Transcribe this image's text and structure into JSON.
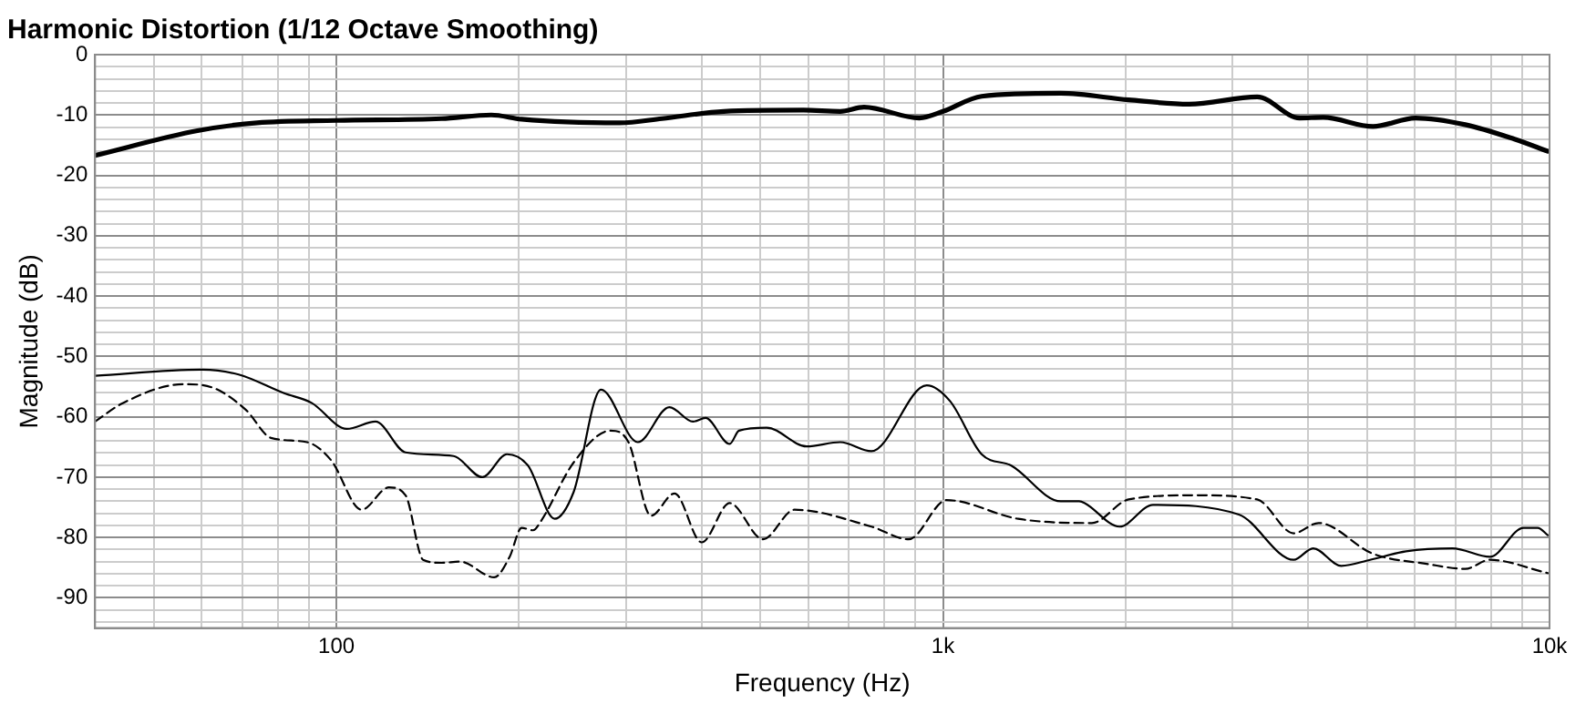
{
  "chart_data": {
    "type": "line",
    "title": "Harmonic Distortion (1/12 Octave Smoothing)",
    "xlabel": "Frequency (Hz)",
    "ylabel": "Magnitude (dB)",
    "log": "x",
    "grid": true,
    "legend": false,
    "marker": "none",
    "xlim": [
      40,
      10000
    ],
    "ylim": [
      -95,
      0
    ],
    "xticks": [
      {
        "value": 50,
        "label": null
      },
      {
        "value": 60,
        "label": null
      },
      {
        "value": 70,
        "label": null
      },
      {
        "value": 80,
        "label": null
      },
      {
        "value": 90,
        "label": null
      },
      100,
      {
        "value": 200,
        "label": null
      },
      {
        "value": 300,
        "label": null
      },
      {
        "value": 400,
        "label": null
      },
      {
        "value": 500,
        "label": null
      },
      {
        "value": 600,
        "label": null
      },
      {
        "value": 700,
        "label": null
      },
      {
        "value": 800,
        "label": null
      },
      {
        "value": 900,
        "label": null
      },
      {
        "value": 1000,
        "label": "1k"
      },
      {
        "value": 2000,
        "label": null
      },
      {
        "value": 3000,
        "label": null
      },
      {
        "value": 4000,
        "label": null
      },
      {
        "value": 5000,
        "label": null
      },
      {
        "value": 6000,
        "label": null
      },
      {
        "value": 7000,
        "label": null
      },
      {
        "value": 8000,
        "label": null
      },
      {
        "value": 9000,
        "label": null
      },
      {
        "value": 10000,
        "label": "10k"
      }
    ],
    "yticks": [
      0,
      {
        "value": -2,
        "label": null
      },
      {
        "value": -4,
        "label": null
      },
      {
        "value": -6,
        "label": null
      },
      {
        "value": -8,
        "label": null
      },
      -10,
      {
        "value": -12,
        "label": null
      },
      {
        "value": -14,
        "label": null
      },
      {
        "value": -16,
        "label": null
      },
      {
        "value": -18,
        "label": null
      },
      -20,
      {
        "value": -22,
        "label": null
      },
      {
        "value": -24,
        "label": null
      },
      {
        "value": -26,
        "label": null
      },
      {
        "value": -28,
        "label": null
      },
      -30,
      {
        "value": -32,
        "label": null
      },
      {
        "value": -34,
        "label": null
      },
      {
        "value": -36,
        "label": null
      },
      {
        "value": -38,
        "label": null
      },
      -40,
      {
        "value": -42,
        "label": null
      },
      {
        "value": -44,
        "label": null
      },
      {
        "value": -46,
        "label": null
      },
      {
        "value": -48,
        "label": null
      },
      -50,
      {
        "value": -52,
        "label": null
      },
      {
        "value": -54,
        "label": null
      },
      {
        "value": -56,
        "label": null
      },
      {
        "value": -58,
        "label": null
      },
      -60,
      {
        "value": -62,
        "label": null
      },
      {
        "value": -64,
        "label": null
      },
      {
        "value": -66,
        "label": null
      },
      {
        "value": -68,
        "label": null
      },
      -70,
      {
        "value": -72,
        "label": null
      },
      {
        "value": -74,
        "label": null
      },
      {
        "value": -76,
        "label": null
      },
      {
        "value": -78,
        "label": null
      },
      -80,
      {
        "value": -82,
        "label": null
      },
      {
        "value": -84,
        "label": null
      },
      {
        "value": -86,
        "label": null
      },
      {
        "value": -88,
        "label": null
      },
      -90,
      {
        "value": -92,
        "label": null
      },
      {
        "value": -94,
        "label": null
      }
    ],
    "series": [
      {
        "color": "#000000",
        "line_style": "solid",
        "x": [
          40,
          59,
          74,
          100,
          149,
          180,
          202,
          293,
          344,
          435,
          589,
          677,
          741,
          914,
          1000,
          1158,
          1564,
          2023,
          2545,
          3296,
          3873,
          4235,
          5117,
          6011,
          7261,
          8753,
          9930
        ],
        "values": [
          -16.7,
          -12.6,
          -11.3,
          -10.9,
          -10.6,
          -10.0,
          -10.7,
          -11.3,
          -10.6,
          -9.4,
          -9.2,
          -9.4,
          -8.7,
          -10.5,
          -9.4,
          -6.9,
          -6.4,
          -7.5,
          -8.2,
          -7.0,
          -10.5,
          -10.4,
          -11.9,
          -10.5,
          -11.6,
          -14.0,
          -16.0
        ]
      },
      {
        "color": "#000000",
        "line_style": "solid",
        "x": [
          40,
          60,
          69,
          82,
          91,
          104,
          116,
          130,
          156,
          174,
          191,
          207,
          229,
          246,
          273,
          314,
          354,
          387,
          406,
          445,
          461,
          512,
          596,
          677,
          762,
          940,
          1027,
          1158,
          1296,
          1564,
          1677,
          1713,
          1955,
          2219,
          3075,
          3787,
          4075,
          4535,
          5060,
          5800,
          6920,
          7975,
          9060,
          9560,
          9930
        ],
        "values": [
          -53.2,
          -52.2,
          -53.0,
          -56.1,
          -57.7,
          -62.0,
          -60.8,
          -65.9,
          -66.5,
          -70.0,
          -66.2,
          -68.1,
          -76.9,
          -72.5,
          -55.5,
          -64.2,
          -58.4,
          -60.8,
          -60.2,
          -64.5,
          -62.3,
          -61.8,
          -64.9,
          -64.2,
          -65.7,
          -54.8,
          -57.4,
          -66.2,
          -68.1,
          -74.0,
          -74.0,
          -74.3,
          -78.2,
          -74.6,
          -76.2,
          -83.7,
          -81.8,
          -84.7,
          -83.7,
          -82.3,
          -81.8,
          -83.2,
          -78.4,
          -78.4,
          -79.6
        ]
      },
      {
        "color": "#000000",
        "line_style": "dashed",
        "x": [
          40,
          44.5,
          56,
          63,
          71,
          78,
          89.4,
          98,
          110,
          122,
          130,
          139,
          149,
          160,
          182,
          193,
          202,
          211,
          217,
          246,
          283,
          303,
          330,
          361,
          400,
          445,
          505,
          569,
          762,
          878,
          1014,
          1330,
          1760,
          2023,
          2600,
          3296,
          3787,
          4160,
          5117,
          6300,
          7261,
          7975,
          9930
        ],
        "values": [
          -60.8,
          -57.7,
          -54.6,
          -55.3,
          -58.9,
          -63.5,
          -64.2,
          -67.2,
          -75.4,
          -71.7,
          -73.0,
          -83.7,
          -84.2,
          -84.0,
          -86.6,
          -83.2,
          -78.4,
          -78.8,
          -77.4,
          -67.6,
          -62.3,
          -64.2,
          -76.4,
          -72.7,
          -80.8,
          -74.3,
          -80.3,
          -75.4,
          -78.2,
          -80.3,
          -73.8,
          -76.9,
          -77.6,
          -73.7,
          -73.0,
          -73.7,
          -79.3,
          -77.6,
          -82.7,
          -84.4,
          -85.2,
          -83.7,
          -85.9
        ]
      }
    ]
  }
}
